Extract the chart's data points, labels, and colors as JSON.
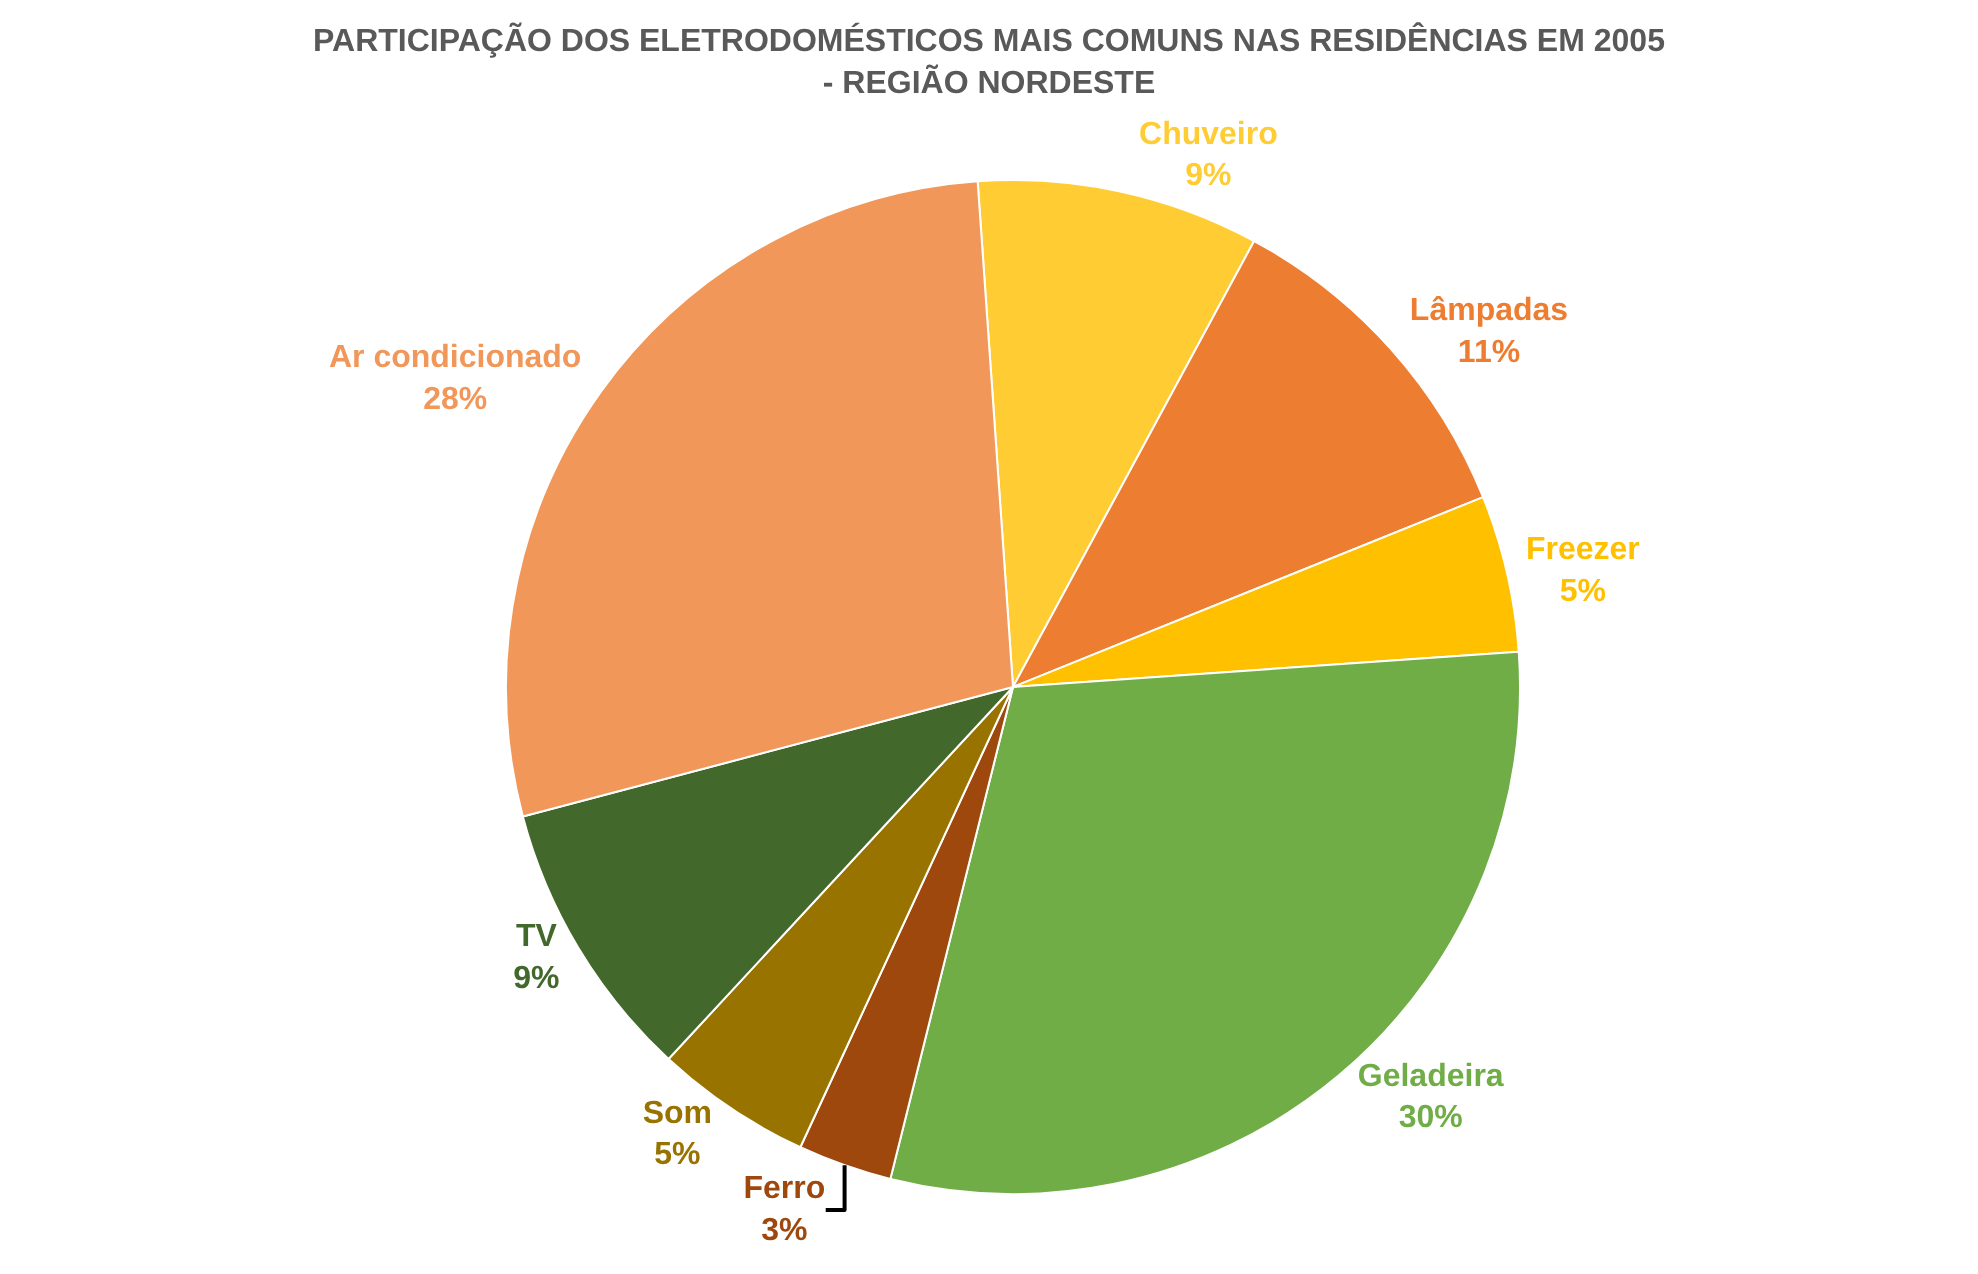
{
  "chart_data": {
    "type": "pie",
    "title": "PARTICIPAÇÃO DOS ELETRODOMÉSTICOS MAIS COMUNS NAS RESIDÊNCIAS EM 2005 - REGIÃO NORDESTE",
    "categories": [
      "Chuveiro",
      "Lâmpadas",
      "Freezer",
      "Geladeira",
      "Ferro",
      "Som",
      "TV",
      "Ar condicionado"
    ],
    "values": [
      9,
      11,
      5,
      30,
      3,
      5,
      9,
      28
    ],
    "value_labels": [
      "9%",
      "11%",
      "5%",
      "30%",
      "3%",
      "5%",
      "9%",
      "28%"
    ],
    "colors": [
      "#ffcd33",
      "#ed7d31",
      "#ffc000",
      "#70ad47",
      "#9e480e",
      "#997300",
      "#43682b",
      "#f1975a"
    ],
    "legend": false
  }
}
